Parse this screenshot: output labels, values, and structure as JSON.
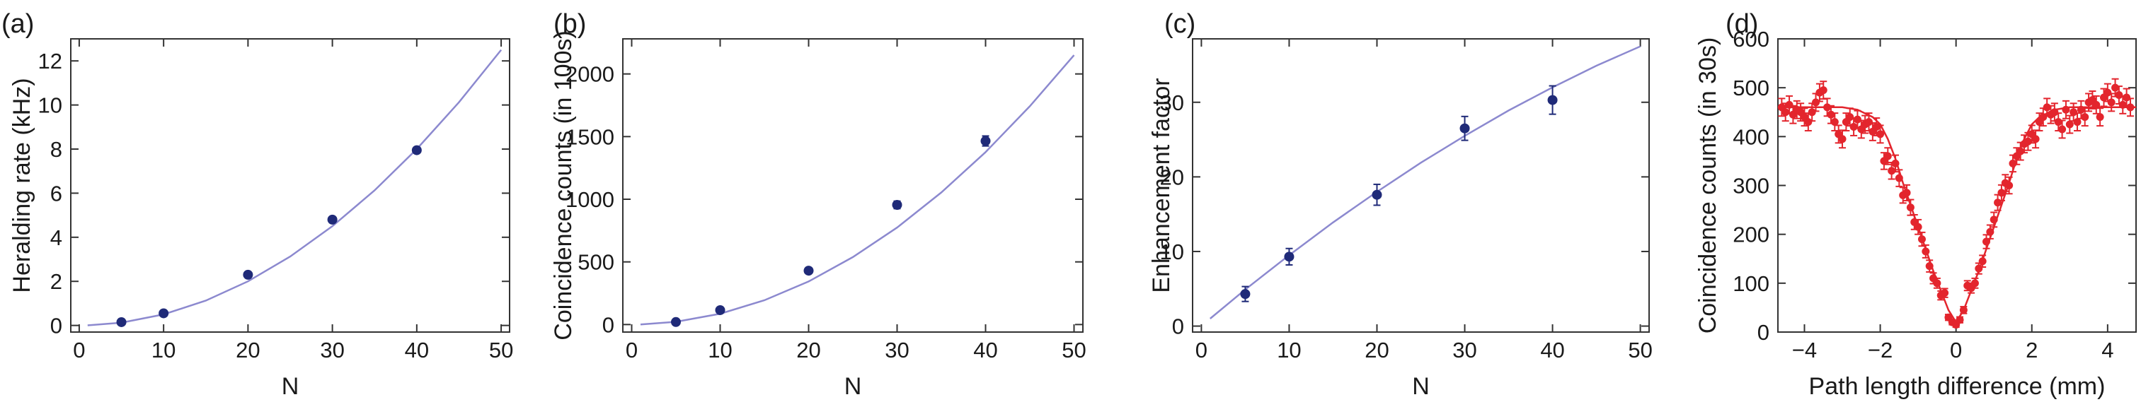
{
  "chart_data": [
    {
      "panel_label": "(a)",
      "type": "scatter",
      "xlabel": "N",
      "ylabel": "Heralding rate (kHz)",
      "xlim": [
        -1,
        51
      ],
      "ylim": [
        -0.3,
        13
      ],
      "xticks": [
        0,
        10,
        20,
        30,
        40,
        50
      ],
      "yticks": [
        0,
        2,
        4,
        6,
        8,
        10,
        12
      ],
      "point_color": "#1f2a78",
      "fit_color": "#8c89cf",
      "points": [
        {
          "x": 5,
          "y": 0.15,
          "err": 0
        },
        {
          "x": 10,
          "y": 0.55,
          "err": 0
        },
        {
          "x": 20,
          "y": 2.3,
          "err": 0
        },
        {
          "x": 30,
          "y": 4.8,
          "err": 0
        },
        {
          "x": 40,
          "y": 7.95,
          "err": 0
        }
      ],
      "fit": {
        "x": [
          1,
          5,
          10,
          15,
          20,
          25,
          30,
          35,
          40,
          45,
          50
        ],
        "y": [
          0.005,
          0.125,
          0.5,
          1.125,
          2.0,
          3.125,
          4.5,
          6.125,
          8.0,
          10.125,
          12.5
        ]
      }
    },
    {
      "panel_label": "(b)",
      "type": "scatter",
      "xlabel": "N",
      "ylabel": "Coincidence counts (in 100s)",
      "xlim": [
        -1,
        51
      ],
      "ylim": [
        -60,
        2280
      ],
      "xticks": [
        0,
        10,
        20,
        30,
        40,
        50
      ],
      "yticks": [
        0,
        500,
        1000,
        1500,
        2000
      ],
      "point_color": "#1f2a78",
      "fit_color": "#8c89cf",
      "points": [
        {
          "x": 5,
          "y": 20,
          "err": 5
        },
        {
          "x": 10,
          "y": 115,
          "err": 8
        },
        {
          "x": 20,
          "y": 430,
          "err": 15
        },
        {
          "x": 30,
          "y": 955,
          "err": 30
        },
        {
          "x": 40,
          "y": 1465,
          "err": 40
        }
      ],
      "fit": {
        "x": [
          1,
          5,
          10,
          15,
          20,
          25,
          30,
          35,
          40,
          45,
          50
        ],
        "y": [
          1,
          22,
          86,
          194,
          344,
          538,
          774,
          1054,
          1376,
          1742,
          2150
        ]
      }
    },
    {
      "panel_label": "(c)",
      "type": "scatter",
      "xlabel": "N",
      "ylabel": "Enhancement factor",
      "xlim": [
        -1,
        51
      ],
      "ylim": [
        -0.8,
        38.5
      ],
      "xticks": [
        0,
        10,
        20,
        30,
        40,
        50
      ],
      "yticks": [
        0,
        10,
        20,
        30
      ],
      "point_color": "#1f2a78",
      "fit_color": "#8c89cf",
      "points": [
        {
          "x": 5,
          "y": 4.3,
          "err": 1.0
        },
        {
          "x": 10,
          "y": 9.3,
          "err": 1.1
        },
        {
          "x": 20,
          "y": 17.6,
          "err": 1.4
        },
        {
          "x": 30,
          "y": 26.5,
          "err": 1.6
        },
        {
          "x": 40,
          "y": 30.3,
          "err": 1.9
        }
      ],
      "fit": {
        "x": [
          1,
          5,
          10,
          15,
          20,
          25,
          30,
          35,
          40,
          45,
          50
        ],
        "y": [
          1.0,
          4.9,
          9.5,
          13.9,
          18.0,
          21.9,
          25.5,
          28.9,
          32.0,
          34.9,
          37.5
        ]
      }
    },
    {
      "panel_label": "(d)",
      "type": "scatter",
      "xlabel": "Path length difference (mm)",
      "ylabel": "Coincidence counts (in 30s)",
      "xlim": [
        -4.7,
        4.75
      ],
      "ylim": [
        0,
        600
      ],
      "xticks": [
        -4,
        -2,
        0,
        2,
        4
      ],
      "yticks": [
        0,
        100,
        200,
        300,
        400,
        500,
        600
      ],
      "point_color": "#e3252d",
      "fit_color": "#e3252d",
      "points": [
        {
          "x": -4.6,
          "y": 460,
          "err": 18
        },
        {
          "x": -4.5,
          "y": 450,
          "err": 18
        },
        {
          "x": -4.4,
          "y": 465,
          "err": 18
        },
        {
          "x": -4.3,
          "y": 445,
          "err": 18
        },
        {
          "x": -4.2,
          "y": 455,
          "err": 18
        },
        {
          "x": -4.1,
          "y": 450,
          "err": 18
        },
        {
          "x": -4.0,
          "y": 440,
          "err": 18
        },
        {
          "x": -3.9,
          "y": 430,
          "err": 18
        },
        {
          "x": -3.8,
          "y": 450,
          "err": 18
        },
        {
          "x": -3.7,
          "y": 470,
          "err": 18
        },
        {
          "x": -3.6,
          "y": 490,
          "err": 18
        },
        {
          "x": -3.5,
          "y": 495,
          "err": 18
        },
        {
          "x": -3.4,
          "y": 460,
          "err": 18
        },
        {
          "x": -3.3,
          "y": 445,
          "err": 18
        },
        {
          "x": -3.2,
          "y": 430,
          "err": 18
        },
        {
          "x": -3.1,
          "y": 405,
          "err": 18
        },
        {
          "x": -3.0,
          "y": 395,
          "err": 18
        },
        {
          "x": -2.9,
          "y": 430,
          "err": 18
        },
        {
          "x": -2.8,
          "y": 440,
          "err": 18
        },
        {
          "x": -2.7,
          "y": 420,
          "err": 18
        },
        {
          "x": -2.6,
          "y": 435,
          "err": 18
        },
        {
          "x": -2.5,
          "y": 415,
          "err": 18
        },
        {
          "x": -2.4,
          "y": 425,
          "err": 18
        },
        {
          "x": -2.3,
          "y": 430,
          "err": 18
        },
        {
          "x": -2.2,
          "y": 410,
          "err": 18
        },
        {
          "x": -2.1,
          "y": 420,
          "err": 18
        },
        {
          "x": -2.0,
          "y": 405,
          "err": 18
        },
        {
          "x": -1.9,
          "y": 350,
          "err": 17
        },
        {
          "x": -1.8,
          "y": 360,
          "err": 17
        },
        {
          "x": -1.7,
          "y": 330,
          "err": 17
        },
        {
          "x": -1.6,
          "y": 345,
          "err": 17
        },
        {
          "x": -1.5,
          "y": 315,
          "err": 17
        },
        {
          "x": -1.4,
          "y": 280,
          "err": 16
        },
        {
          "x": -1.3,
          "y": 285,
          "err": 16
        },
        {
          "x": -1.2,
          "y": 255,
          "err": 16
        },
        {
          "x": -1.1,
          "y": 225,
          "err": 15
        },
        {
          "x": -1.0,
          "y": 215,
          "err": 15
        },
        {
          "x": -0.9,
          "y": 190,
          "err": 14
        },
        {
          "x": -0.8,
          "y": 165,
          "err": 13
        },
        {
          "x": -0.7,
          "y": 135,
          "err": 12
        },
        {
          "x": -0.6,
          "y": 110,
          "err": 11
        },
        {
          "x": -0.5,
          "y": 100,
          "err": 10
        },
        {
          "x": -0.4,
          "y": 75,
          "err": 9
        },
        {
          "x": -0.3,
          "y": 80,
          "err": 9
        },
        {
          "x": -0.2,
          "y": 30,
          "err": 6
        },
        {
          "x": -0.1,
          "y": 20,
          "err": 5
        },
        {
          "x": 0.0,
          "y": 15,
          "err": 5
        },
        {
          "x": 0.1,
          "y": 25,
          "err": 6
        },
        {
          "x": 0.2,
          "y": 45,
          "err": 7
        },
        {
          "x": 0.3,
          "y": 95,
          "err": 10
        },
        {
          "x": 0.4,
          "y": 90,
          "err": 10
        },
        {
          "x": 0.5,
          "y": 100,
          "err": 10
        },
        {
          "x": 0.6,
          "y": 130,
          "err": 11
        },
        {
          "x": 0.7,
          "y": 145,
          "err": 12
        },
        {
          "x": 0.8,
          "y": 185,
          "err": 14
        },
        {
          "x": 0.9,
          "y": 205,
          "err": 14
        },
        {
          "x": 1.0,
          "y": 230,
          "err": 15
        },
        {
          "x": 1.1,
          "y": 265,
          "err": 16
        },
        {
          "x": 1.2,
          "y": 285,
          "err": 16
        },
        {
          "x": 1.3,
          "y": 305,
          "err": 17
        },
        {
          "x": 1.4,
          "y": 300,
          "err": 17
        },
        {
          "x": 1.5,
          "y": 345,
          "err": 17
        },
        {
          "x": 1.6,
          "y": 360,
          "err": 17
        },
        {
          "x": 1.7,
          "y": 370,
          "err": 18
        },
        {
          "x": 1.8,
          "y": 385,
          "err": 18
        },
        {
          "x": 1.9,
          "y": 390,
          "err": 18
        },
        {
          "x": 2.0,
          "y": 405,
          "err": 18
        },
        {
          "x": 2.1,
          "y": 395,
          "err": 18
        },
        {
          "x": 2.2,
          "y": 430,
          "err": 18
        },
        {
          "x": 2.3,
          "y": 440,
          "err": 18
        },
        {
          "x": 2.4,
          "y": 460,
          "err": 18
        },
        {
          "x": 2.5,
          "y": 445,
          "err": 18
        },
        {
          "x": 2.6,
          "y": 450,
          "err": 18
        },
        {
          "x": 2.7,
          "y": 430,
          "err": 18
        },
        {
          "x": 2.8,
          "y": 415,
          "err": 18
        },
        {
          "x": 2.9,
          "y": 455,
          "err": 18
        },
        {
          "x": 3.0,
          "y": 425,
          "err": 18
        },
        {
          "x": 3.1,
          "y": 450,
          "err": 18
        },
        {
          "x": 3.2,
          "y": 430,
          "err": 18
        },
        {
          "x": 3.3,
          "y": 455,
          "err": 18
        },
        {
          "x": 3.4,
          "y": 440,
          "err": 18
        },
        {
          "x": 3.5,
          "y": 470,
          "err": 18
        },
        {
          "x": 3.6,
          "y": 475,
          "err": 18
        },
        {
          "x": 3.7,
          "y": 465,
          "err": 18
        },
        {
          "x": 3.8,
          "y": 440,
          "err": 18
        },
        {
          "x": 3.9,
          "y": 480,
          "err": 18
        },
        {
          "x": 4.0,
          "y": 490,
          "err": 18
        },
        {
          "x": 4.1,
          "y": 470,
          "err": 18
        },
        {
          "x": 4.2,
          "y": 500,
          "err": 18
        },
        {
          "x": 4.3,
          "y": 485,
          "err": 18
        },
        {
          "x": 4.4,
          "y": 465,
          "err": 18
        },
        {
          "x": 4.5,
          "y": 480,
          "err": 18
        },
        {
          "x": 4.6,
          "y": 460,
          "err": 18
        }
      ],
      "fit": {
        "x": [
          -4.7,
          -4.0,
          -3.0,
          -2.6,
          -2.2,
          -2.0,
          -1.8,
          -1.6,
          -1.4,
          -1.2,
          -1.0,
          -0.8,
          -0.6,
          -0.4,
          -0.2,
          0.0,
          0.2,
          0.4,
          0.6,
          0.8,
          1.0,
          1.2,
          1.4,
          1.6,
          1.8,
          2.0,
          2.2,
          2.6,
          3.0,
          4.0,
          4.75
        ],
        "y": [
          460,
          460,
          460,
          455,
          440,
          425,
          395,
          355,
          305,
          260,
          215,
          170,
          125,
          85,
          45,
          20,
          45,
          85,
          125,
          170,
          215,
          260,
          305,
          355,
          395,
          425,
          440,
          455,
          460,
          460,
          460
        ]
      }
    }
  ]
}
